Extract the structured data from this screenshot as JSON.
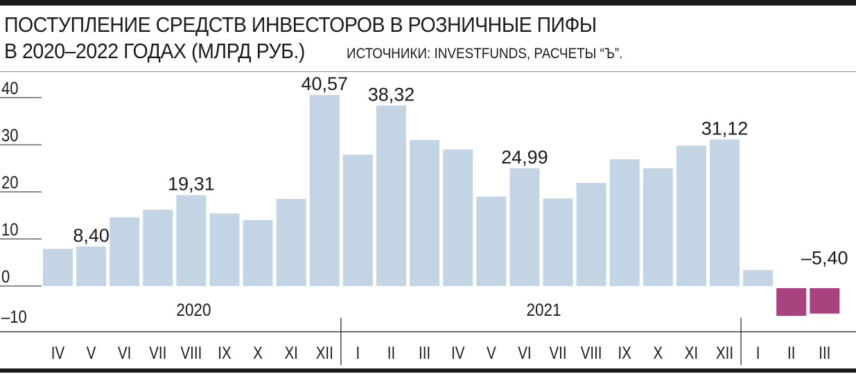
{
  "title": {
    "line1": "ПОСТУПЛЕНИЕ СРЕДСТВ ИНВЕСТОРОВ В РОЗНИЧНЫЕ ПИФЫ",
    "line2": "В 2020–2022 ГОДАХ (МЛРД РУБ.)",
    "source": "ИСТОЧНИКИ: INVESTFUNDS, РАСЧЕТЫ “Ъ”."
  },
  "colors": {
    "positive_bar": "#c3d4e4",
    "negative_bar": "#a8437f",
    "text": "#1a1a1a",
    "grid": "#1a1a1a"
  },
  "chart_data": {
    "type": "bar",
    "title": "ПОСТУПЛЕНИЕ СРЕДСТВ ИНВЕСТОРОВ В РОЗНИЧНЫЕ ПИФЫ В 2020–2022 ГОДАХ (МЛРД РУБ.)",
    "categories": [
      "IV",
      "V",
      "VI",
      "VII",
      "VIII",
      "IX",
      "X",
      "XI",
      "XII",
      "I",
      "II",
      "III",
      "IV",
      "V",
      "VI",
      "VII",
      "VIII",
      "IX",
      "X",
      "XI",
      "XII",
      "I",
      "II",
      "III"
    ],
    "groups": [
      {
        "label": "2020",
        "count": 9
      },
      {
        "label": "2021",
        "count": 12
      },
      {
        "label": "",
        "count": 3
      }
    ],
    "values": [
      7.9,
      8.4,
      14.6,
      16.2,
      19.31,
      15.4,
      14.0,
      18.5,
      40.57,
      27.9,
      38.32,
      31.0,
      29.0,
      19.0,
      24.99,
      18.6,
      21.9,
      26.9,
      25.0,
      29.8,
      31.12,
      3.4,
      -5.9,
      -5.4
    ],
    "data_labels": {
      "1": "8,40",
      "4": "19,31",
      "8": "40,57",
      "10": "38,32",
      "14": "24,99",
      "20": "31,12",
      "23": "–5,40"
    },
    "yticks": [
      {
        "value": 40,
        "label": "40"
      },
      {
        "value": 30,
        "label": "30"
      },
      {
        "value": 20,
        "label": "20"
      },
      {
        "value": 10,
        "label": "10"
      },
      {
        "value": 0,
        "label": "0"
      },
      {
        "value": -10,
        "label": "–10"
      }
    ],
    "ylim": [
      -10,
      40
    ],
    "grid": "short tick lines at left",
    "xlabel": "",
    "ylabel": ""
  }
}
